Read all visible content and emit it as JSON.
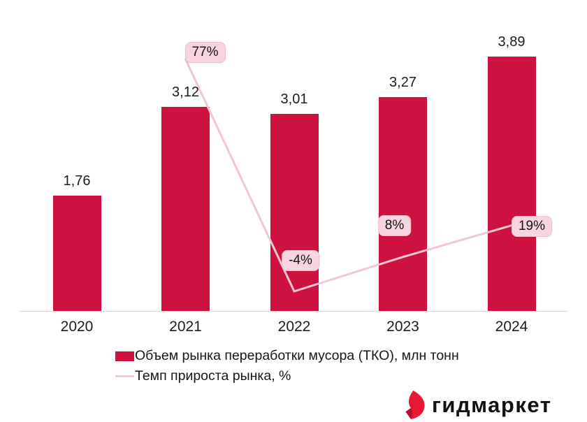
{
  "chart_data": {
    "type": "bar",
    "title": "",
    "xlabel": "",
    "ylabel": "",
    "categories": [
      "2020",
      "2021",
      "2022",
      "2023",
      "2024"
    ],
    "series": [
      {
        "name": "Объем рынка переработки мусора (ТКО), млн тонн",
        "type": "bar",
        "values": [
          1.76,
          3.12,
          3.01,
          3.27,
          3.89
        ],
        "labels": [
          "1,76",
          "3,12",
          "3,01",
          "3,27",
          "3,89"
        ],
        "color": "#ce1240"
      },
      {
        "name": "Темп прироста рынка, %",
        "type": "line",
        "x": [
          "2021",
          "2022",
          "2023",
          "2024"
        ],
        "values": [
          77,
          -4,
          8,
          19
        ],
        "labels": [
          "77%",
          "-4%",
          "8%",
          "19%"
        ],
        "color": "#f3c6d5"
      }
    ],
    "ylim": [
      0,
      4.8
    ],
    "grid": false,
    "legend_position": "bottom-left"
  },
  "legend": {
    "items": [
      {
        "label": "Объем рынка переработки мусора (ТКО), млн тонн",
        "swatch": "bar-square",
        "color": "#ce1240"
      },
      {
        "label": "Темп прироста рынка, %",
        "swatch": "line",
        "color": "#f3c6d5"
      }
    ]
  },
  "logo": {
    "text": "гидмаркет",
    "icon": "flame-icon",
    "icon_color": "#e81732",
    "icon_fold_color": "#b50f2c"
  },
  "colors": {
    "bar": "#ce1240",
    "line": "#f3c6d5",
    "label_bg": "#f8d3e0",
    "label_border": "#eebdd0",
    "axis": "#d9d9d9",
    "text": "#1c1c1c"
  }
}
